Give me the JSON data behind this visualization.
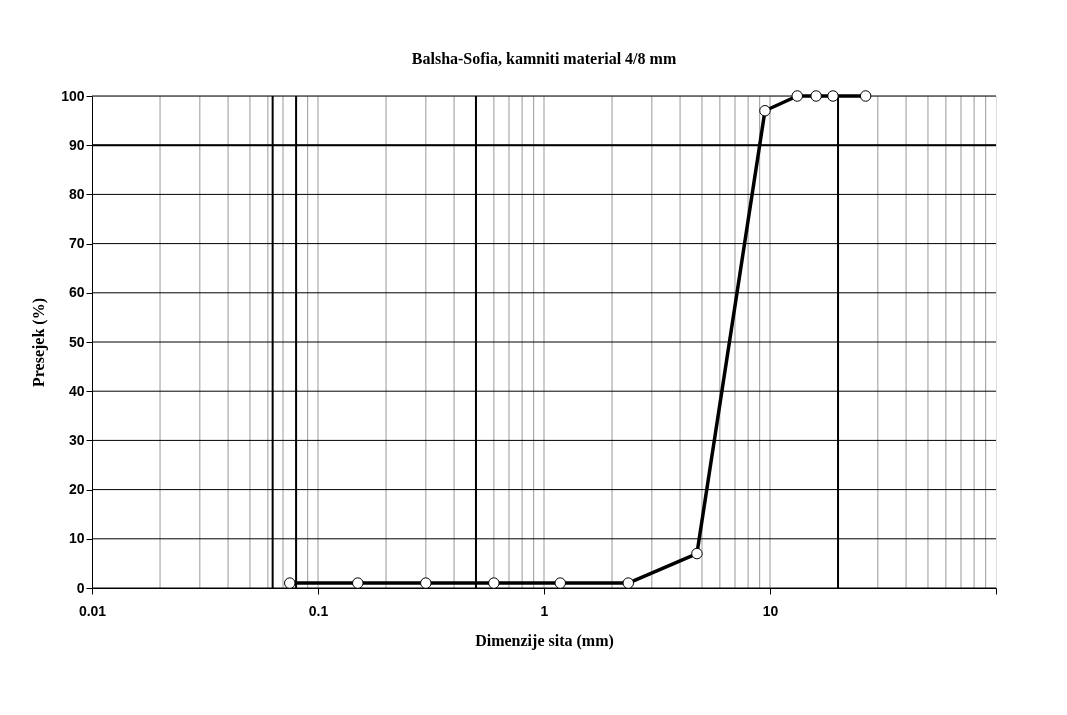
{
  "chart_data": {
    "type": "line",
    "title": "Balsha-Sofia, kamniti material 4/8 mm",
    "xlabel": "Dimenzije sita (mm)",
    "ylabel": "Presejek (%)",
    "x": [
      0.075,
      0.15,
      0.3,
      0.6,
      1.18,
      2.36,
      4.75,
      9.5,
      13.2,
      16,
      19,
      26.5
    ],
    "series": [
      {
        "color": "#000000",
        "values": [
          1,
          1,
          1,
          1,
          1,
          1,
          7,
          97,
          100,
          100,
          100,
          100
        ]
      }
    ],
    "log": "x",
    "xlim": [
      0.01,
      100
    ],
    "xticks": [
      0.01,
      0.1,
      1,
      10,
      {
        "value": 100,
        "label": null
      }
    ],
    "ylim": [
      0,
      100
    ],
    "yticks": [
      0,
      10,
      20,
      30,
      40,
      50,
      60,
      70,
      80,
      90,
      100
    ],
    "grid": true,
    "marker": "circle",
    "line_style": "solid",
    "ref_lines": [
      {
        "axis": "x",
        "value": 0.063,
        "color": "#000000"
      },
      {
        "axis": "x",
        "value": 0.08,
        "color": "#000000"
      },
      {
        "axis": "x",
        "value": 0.5,
        "color": "#000000"
      },
      {
        "axis": "x",
        "value": 20,
        "color": "#000000"
      },
      {
        "axis": "y",
        "value": 90,
        "color": "#000000"
      }
    ]
  }
}
